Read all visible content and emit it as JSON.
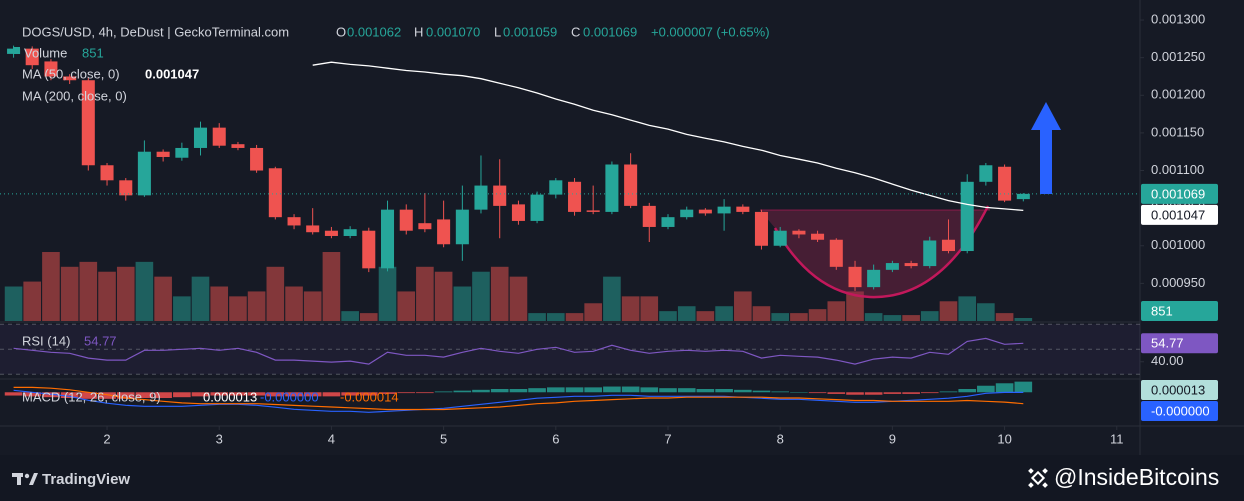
{
  "chart_data": {
    "type": "candlestick",
    "header": {
      "symbol": "DOGS/USD, 4h, DeDust | GeckoTerminal.com",
      "o_key": "O",
      "o": "0.001062",
      "h_key": "H",
      "h": "0.001070",
      "l_key": "L",
      "l": "0.001059",
      "c_key": "C",
      "c": "0.001069",
      "change": "+0.000007 (+0.65%)"
    },
    "x": [
      1.167,
      1.333,
      1.5,
      1.667,
      1.833,
      2,
      2.167,
      2.333,
      2.5,
      2.667,
      2.833,
      3,
      3.167,
      3.333,
      3.5,
      3.667,
      3.833,
      4,
      4.167,
      4.333,
      4.5,
      4.667,
      4.833,
      5,
      5.167,
      5.333,
      5.5,
      5.667,
      5.833,
      6,
      6.167,
      6.333,
      6.5,
      6.667,
      6.833,
      7,
      7.167,
      7.333,
      7.5,
      7.667,
      7.833,
      8,
      8.167,
      8.333,
      8.5,
      8.667,
      8.833,
      9,
      9.167,
      9.333,
      9.5,
      9.667,
      9.833,
      10,
      10.167
    ],
    "xlim": [
      1.046,
      11.207
    ],
    "xticks": [
      2,
      3,
      4,
      5,
      6,
      7,
      8,
      9,
      10,
      11
    ],
    "open": [
      0.001255,
      0.001262,
      0.001245,
      0.001225,
      0.00122,
      0.001107,
      0.001087,
      0.001067,
      0.001125,
      0.001117,
      0.00113,
      0.001157,
      0.001135,
      0.00113,
      0.001103,
      0.001038,
      0.001027,
      0.00102,
      0.001013,
      0.00102,
      0.00097,
      0.001048,
      0.00103,
      0.001035,
      0.001002,
      0.001048,
      0.00108,
      0.001055,
      0.001033,
      0.001068,
      0.001085,
      0.001047,
      0.001045,
      0.001108,
      0.001053,
      0.001025,
      0.001038,
      0.001048,
      0.001043,
      0.001052,
      0.001045,
      0.001,
      0.00102,
      0.001016,
      0.001008,
      0.000972,
      0.000945,
      0.000968,
      0.000977,
      0.000973,
      0.001008,
      0.000993,
      0.001085,
      0.001105,
      0.001062
    ],
    "high": [
      0.001266,
      0.001265,
      0.001248,
      0.001228,
      0.001223,
      0.00111,
      0.00109,
      0.00114,
      0.001128,
      0.001137,
      0.001165,
      0.001163,
      0.001138,
      0.001134,
      0.001105,
      0.001042,
      0.00105,
      0.001025,
      0.001026,
      0.001024,
      0.00106,
      0.001055,
      0.00107,
      0.00106,
      0.00108,
      0.00112,
      0.001115,
      0.00106,
      0.001072,
      0.00109,
      0.00109,
      0.00108,
      0.001112,
      0.001123,
      0.001057,
      0.001042,
      0.001052,
      0.00105,
      0.001062,
      0.001055,
      0.001048,
      0.001025,
      0.001022,
      0.00102,
      0.00101,
      0.00098,
      0.000975,
      0.00098,
      0.00098,
      0.001012,
      0.001035,
      0.001095,
      0.00111,
      0.001108,
      0.00107
    ],
    "low": [
      0.00125,
      0.001235,
      0.00122,
      0.001215,
      0.0011,
      0.00108,
      0.00106,
      0.001065,
      0.001112,
      0.001113,
      0.00112,
      0.00113,
      0.001127,
      0.001097,
      0.001035,
      0.001022,
      0.001015,
      0.00101,
      0.00101,
      0.000965,
      0.000966,
      0.001015,
      0.001018,
      0.000998,
      0.00098,
      0.001043,
      0.00101,
      0.001028,
      0.00103,
      0.001063,
      0.00104,
      0.001042,
      0.001042,
      0.00105,
      0.001005,
      0.001022,
      0.001035,
      0.00104,
      0.00102,
      0.001042,
      0.000995,
      0.000998,
      0.00101,
      0.001005,
      0.000968,
      0.00094,
      0.000942,
      0.000965,
      0.00097,
      0.00097,
      0.00099,
      0.00099,
      0.00108,
      0.001058,
      0.001059
    ],
    "close": [
      0.001262,
      0.00124,
      0.001225,
      0.00122,
      0.001107,
      0.001087,
      0.001067,
      0.001125,
      0.001118,
      0.00113,
      0.001157,
      0.001133,
      0.00113,
      0.0011,
      0.001038,
      0.001027,
      0.001018,
      0.001013,
      0.001022,
      0.00097,
      0.001048,
      0.00102,
      0.001022,
      0.001002,
      0.001048,
      0.00108,
      0.001053,
      0.001033,
      0.001068,
      0.001087,
      0.001045,
      0.001045,
      0.001108,
      0.001053,
      0.001025,
      0.001038,
      0.001048,
      0.001043,
      0.001052,
      0.001045,
      0.001,
      0.00102,
      0.001015,
      0.001008,
      0.000972,
      0.000945,
      0.000968,
      0.000977,
      0.000973,
      0.001007,
      0.000993,
      0.001085,
      0.001107,
      0.00106,
      0.001069
    ],
    "up_color": "#26a69a",
    "down_color": "#ef5350",
    "ylim": [
      0.0009,
      0.00132
    ],
    "yticks": [
      {
        "value": 0.0013,
        "label": "0.001300"
      },
      {
        "value": 0.00125,
        "label": "0.001250"
      },
      {
        "value": 0.0012,
        "label": "0.001200"
      },
      {
        "value": 0.00115,
        "label": "0.001150"
      },
      {
        "value": 0.0011,
        "label": "0.001100"
      },
      {
        "value": 0.00105,
        "label": "0.001050"
      },
      {
        "value": 0.001,
        "label": "0.001000"
      },
      {
        "value": 0.00095,
        "label": "0.000950"
      }
    ],
    "volume": {
      "name": "Volume",
      "ylim": [
        0,
        25000
      ],
      "values": [
        9800,
        11200,
        19600,
        15400,
        16800,
        14000,
        15400,
        16800,
        12600,
        7000,
        12600,
        9800,
        7000,
        8400,
        15400,
        9800,
        8400,
        19600,
        2800,
        2240,
        15400,
        8400,
        15400,
        14000,
        9800,
        14000,
        15400,
        12600,
        2240,
        2240,
        2240,
        5040,
        12600,
        7000,
        7000,
        2800,
        4200,
        2800,
        4200,
        8400,
        4200,
        2240,
        2240,
        3360,
        5600,
        8400,
        2240,
        1680,
        1680,
        2800,
        5600,
        7000,
        5040,
        2240,
        851
      ]
    },
    "ma": [
      {
        "name": "MA (50, close, 0)",
        "color": "#ffffff",
        "values": [
          null,
          null,
          null,
          null,
          null,
          null,
          null,
          null,
          null,
          null,
          null,
          null,
          null,
          null,
          null,
          null,
          0.00124,
          0.001244,
          0.001241,
          0.001239,
          0.001236,
          0.001233,
          0.001231,
          0.001228,
          0.001226,
          0.001222,
          0.001216,
          0.00121,
          0.001203,
          0.001195,
          0.001188,
          0.00118,
          0.001174,
          0.001167,
          0.00116,
          0.001155,
          0.001148,
          0.001143,
          0.001138,
          0.001132,
          0.001127,
          0.00112,
          0.001115,
          0.00111,
          0.001103,
          0.001097,
          0.00109,
          0.001082,
          0.001074,
          0.001067,
          0.00106,
          0.001055,
          0.001051,
          0.001049,
          0.001047
        ]
      },
      {
        "name": "MA (200, close, 0)"
      }
    ],
    "rsi": {
      "name": "RSI (14)",
      "color": "#7e57c2",
      "ylim": [
        27,
        71
      ],
      "levels": [
        70,
        50,
        30
      ],
      "yticks": [
        {
          "value": 40,
          "label": "40.00"
        }
      ],
      "values": [
        50.8,
        49.2,
        47.6,
        46.8,
        42.9,
        41.3,
        41.3,
        49.2,
        49.2,
        50,
        50.8,
        49.2,
        50.8,
        47.6,
        41.3,
        41.3,
        40.5,
        39.7,
        40.5,
        38.1,
        47.6,
        45.2,
        45.2,
        43.7,
        47.6,
        50.8,
        48.4,
        46.8,
        50,
        51.6,
        47.6,
        48.4,
        53.2,
        49.2,
        46.8,
        48.4,
        49.2,
        48.4,
        49.2,
        48.4,
        42.9,
        45.2,
        44.4,
        43.7,
        41.3,
        38.1,
        42.1,
        43.7,
        42.9,
        47.6,
        46,
        56.3,
        58.7,
        54,
        54.77
      ]
    },
    "macd": {
      "name": "MACD (12, 26, close, 9)",
      "ylim": [
        -4e-05,
        1.5e-05
      ],
      "histogram": {
        "up_color": "#26a69a",
        "down_color": "#ff5252",
        "values": [
          -4e-06,
          -5e-06,
          -6e-06,
          -7e-06,
          -8e-06,
          -8e-06,
          -8e-06,
          -7e-06,
          -7e-06,
          -6e-06,
          -5e-06,
          -4e-06,
          -4e-06,
          -4e-06,
          -5e-06,
          -5e-06,
          -5e-06,
          -5e-06,
          -4e-06,
          -4e-06,
          -2e-06,
          -1e-06,
          -1e-06,
          1e-06,
          2e-06,
          3e-06,
          4e-06,
          4e-06,
          5e-06,
          6e-06,
          6e-06,
          6e-06,
          7e-06,
          7e-06,
          6e-06,
          5e-06,
          5e-06,
          4e-06,
          4e-06,
          3e-06,
          2e-06,
          1e-06,
          0,
          -1e-06,
          -2e-06,
          -3e-06,
          -3e-06,
          -2e-06,
          -2e-06,
          -1e-06,
          1e-06,
          4e-06,
          8e-06,
          1.1e-05,
          1.3e-05
        ]
      },
      "macd_line": {
        "color": "#2962ff",
        "value_labels": {
          "54": "-0.000000"
        },
        "values": [
          2.4e-06,
          0,
          -2.4e-06,
          -4.9e-06,
          -9.8e-06,
          -1.34e-05,
          -1.59e-05,
          -1.71e-05,
          -1.71e-05,
          -1.71e-05,
          -1.59e-05,
          -1.47e-05,
          -1.47e-05,
          -1.59e-05,
          -1.83e-05,
          -2.08e-05,
          -2.2e-05,
          -2.32e-05,
          -2.32e-05,
          -2.45e-05,
          -2.32e-05,
          -2.2e-05,
          -2.08e-05,
          -1.96e-05,
          -1.71e-05,
          -1.47e-05,
          -1.22e-05,
          -9.8e-06,
          -7.3e-06,
          -6.1e-06,
          -4.9e-06,
          -4.9e-06,
          -3.7e-06,
          -3.7e-06,
          -4.9e-06,
          -4.9e-06,
          -4.9e-06,
          -4.9e-06,
          -4.9e-06,
          -6.1e-06,
          -7.3e-06,
          -8.6e-06,
          -8.6e-06,
          -9.8e-06,
          -1.1e-05,
          -1.22e-05,
          -1.22e-05,
          -1.1e-05,
          -9.8e-06,
          -8.6e-06,
          -7.3e-06,
          -4.9e-06,
          -1.2e-06,
          -2e-07,
          -2e-07
        ]
      },
      "signal_line": {
        "color": "#ff6d00",
        "values": [
          6e-06,
          6e-06,
          5e-06,
          3e-06,
          0,
          -3e-06,
          -7e-06,
          -9e-06,
          -1.1e-05,
          -1.3e-05,
          -1.4e-05,
          -1.4e-05,
          -1.4e-05,
          -1.4e-05,
          -1.5e-05,
          -1.6e-05,
          -1.7e-05,
          -1.8e-05,
          -1.9e-05,
          -2e-05,
          -2.1e-05,
          -2.1e-05,
          -2.1e-05,
          -2.1e-05,
          -2e-05,
          -1.9e-05,
          -1.8e-05,
          -1.6e-05,
          -1.4e-05,
          -1.3e-05,
          -1.1e-05,
          -1e-05,
          -9e-06,
          -8e-06,
          -7e-06,
          -7e-06,
          -6e-06,
          -6e-06,
          -6e-06,
          -6e-06,
          -6e-06,
          -7e-06,
          -7e-06,
          -8e-06,
          -9e-06,
          -1e-05,
          -1e-05,
          -1.1e-05,
          -1.1e-05,
          -1.1e-05,
          -1.1e-05,
          -1e-05,
          -1.1e-05,
          -1.2e-05,
          -1.4e-05
        ]
      }
    },
    "footer": {
      "brand": "TradingView",
      "credit": "@InsideBitcoins"
    }
  }
}
